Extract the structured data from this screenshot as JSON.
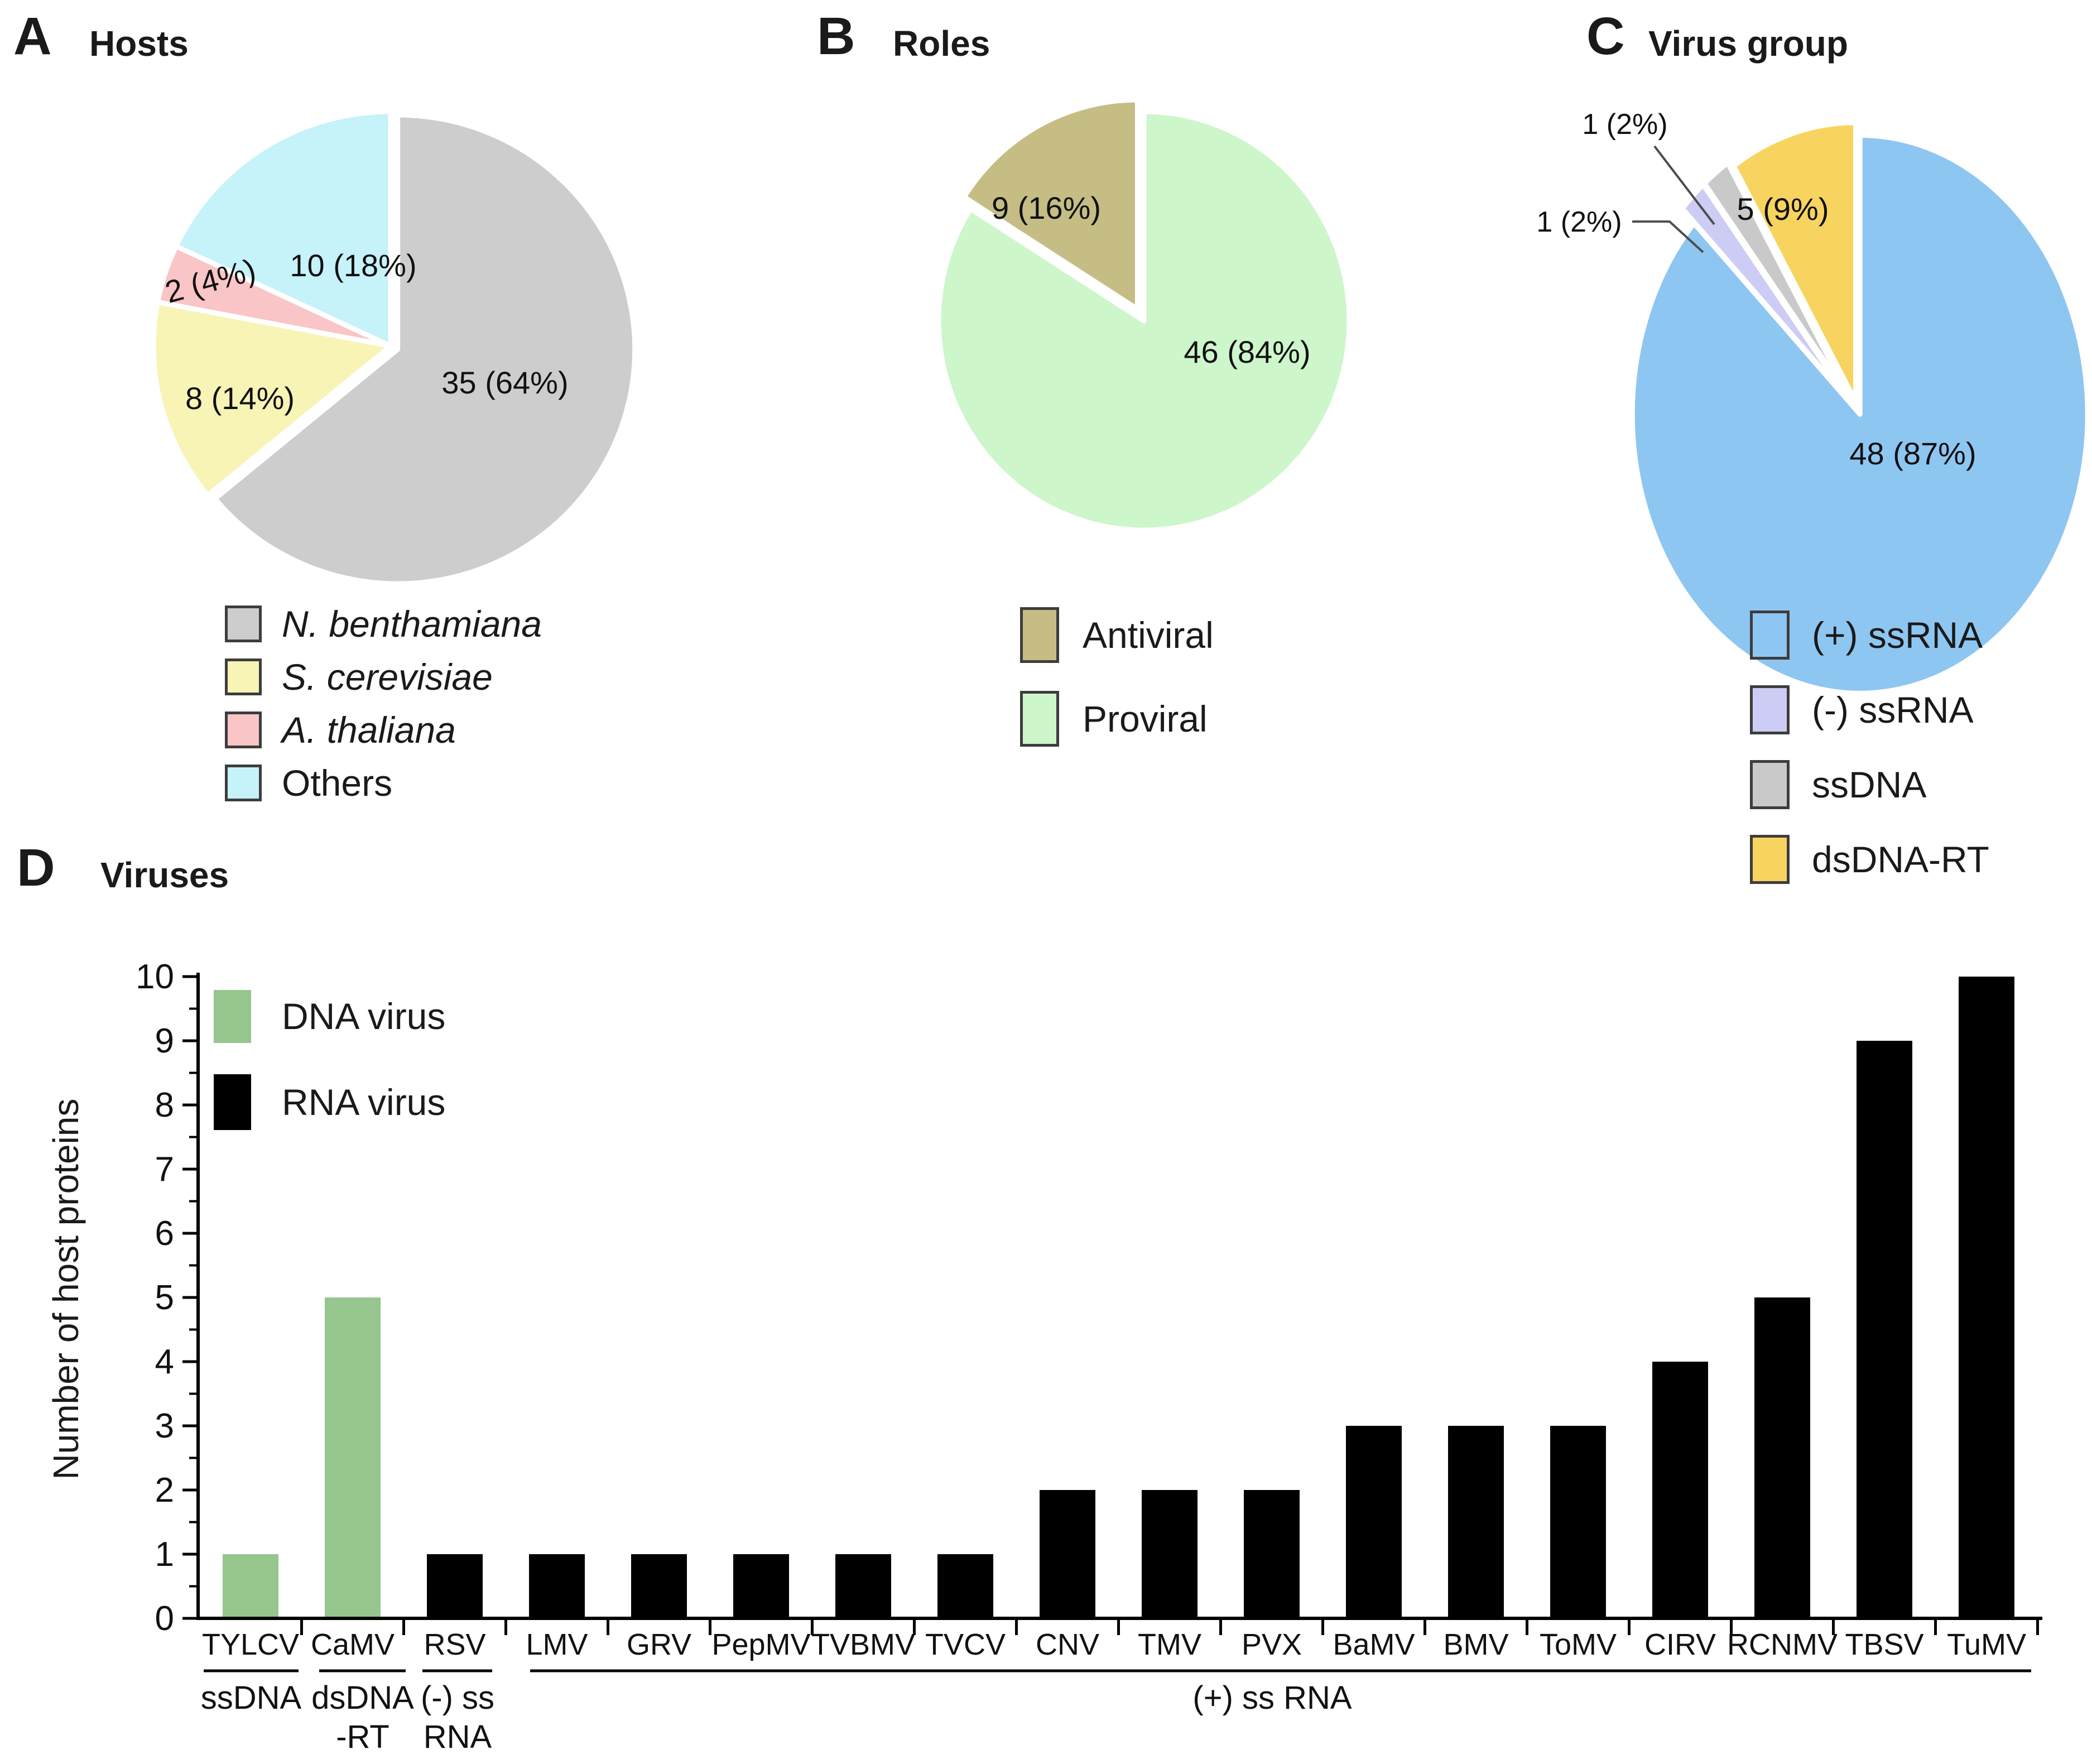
{
  "panels": {
    "a": {
      "letter": "A",
      "title": "Hosts"
    },
    "b": {
      "letter": "B",
      "title": "Roles"
    },
    "c": {
      "letter": "C",
      "title": "Virus group"
    },
    "d": {
      "letter": "D",
      "title": "Viruses"
    }
  },
  "chart_data": [
    {
      "id": "hosts",
      "type": "pie",
      "title": "Hosts",
      "legend_position": "bottom",
      "slices": [
        {
          "label": "N. benthamiana",
          "value": 35,
          "pct": 64,
          "display": "35 (64%)",
          "color": "#cdcdcd",
          "italic": true
        },
        {
          "label": "S. cerevisiae",
          "value": 8,
          "pct": 14,
          "display": "8 (14%)",
          "color": "#f7f4b6",
          "italic": true
        },
        {
          "label": "A. thaliana",
          "value": 2,
          "pct": 4,
          "display": "2 (4%)",
          "color": "#f9c5c6",
          "italic": true
        },
        {
          "label": "Others",
          "value": 10,
          "pct": 18,
          "display": "10 (18%)",
          "color": "#c6f2f9",
          "italic": false
        }
      ]
    },
    {
      "id": "roles",
      "type": "pie",
      "title": "Roles",
      "legend_position": "bottom",
      "slices": [
        {
          "label": "Proviral",
          "value": 46,
          "pct": 84,
          "display": "46 (84%)",
          "color": "#cdf6cb"
        },
        {
          "label": "Antiviral",
          "value": 9,
          "pct": 16,
          "display": "9 (16%)",
          "color": "#c6bd85"
        }
      ]
    },
    {
      "id": "virus_group",
      "type": "pie",
      "title": "Virus group",
      "legend_position": "bottom",
      "slices": [
        {
          "label": "(+) ssRNA",
          "value": 48,
          "pct": 87,
          "display": "48 (87%)",
          "color": "#8ec6f2"
        },
        {
          "label": "(-) ssRNA",
          "value": 1,
          "pct": 2,
          "display": "1 (2%)",
          "color": "#cdccf4"
        },
        {
          "label": "ssDNA",
          "value": 1,
          "pct": 2,
          "display": "1 (2%)",
          "color": "#c9c9c9"
        },
        {
          "label": "dsDNA-RT",
          "value": 5,
          "pct": 9,
          "display": "5 (9%)",
          "color": "#f7d45f"
        }
      ]
    },
    {
      "id": "viruses",
      "type": "bar",
      "title": "Viruses",
      "ylabel": "Number of host proteins",
      "ylim": [
        0,
        10
      ],
      "yticks": [
        0,
        1,
        2,
        3,
        4,
        5,
        6,
        7,
        8,
        9,
        10
      ],
      "categories": [
        "TYLCV",
        "CaMV",
        "RSV",
        "LMV",
        "GRV",
        "PepMV",
        "TVBMV",
        "TVCV",
        "CNV",
        "TMV",
        "PVX",
        "BaMV",
        "BMV",
        "ToMV",
        "CIRV",
        "RCNMV",
        "TBSV",
        "TuMV"
      ],
      "values": [
        1,
        5,
        1,
        1,
        1,
        1,
        1,
        1,
        2,
        2,
        2,
        3,
        3,
        3,
        4,
        5,
        9,
        10
      ],
      "bar_types": [
        "DNA",
        "DNA",
        "RNA",
        "RNA",
        "RNA",
        "RNA",
        "RNA",
        "RNA",
        "RNA",
        "RNA",
        "RNA",
        "RNA",
        "RNA",
        "RNA",
        "RNA",
        "RNA",
        "RNA",
        "RNA"
      ],
      "legend": [
        {
          "label": "DNA virus",
          "color": "#96c58e"
        },
        {
          "label": "RNA virus",
          "color": "#000000"
        }
      ],
      "groups": [
        {
          "lines": [
            "ssDNA"
          ],
          "from": 0,
          "to": 0
        },
        {
          "lines": [
            "dsDNA",
            "-RT"
          ],
          "from": 1,
          "to": 1
        },
        {
          "lines": [
            "(-) ss",
            "RNA"
          ],
          "from": 2,
          "to": 2
        },
        {
          "lines": [
            "(+) ss RNA"
          ],
          "from": 3,
          "to": 17
        }
      ]
    }
  ]
}
